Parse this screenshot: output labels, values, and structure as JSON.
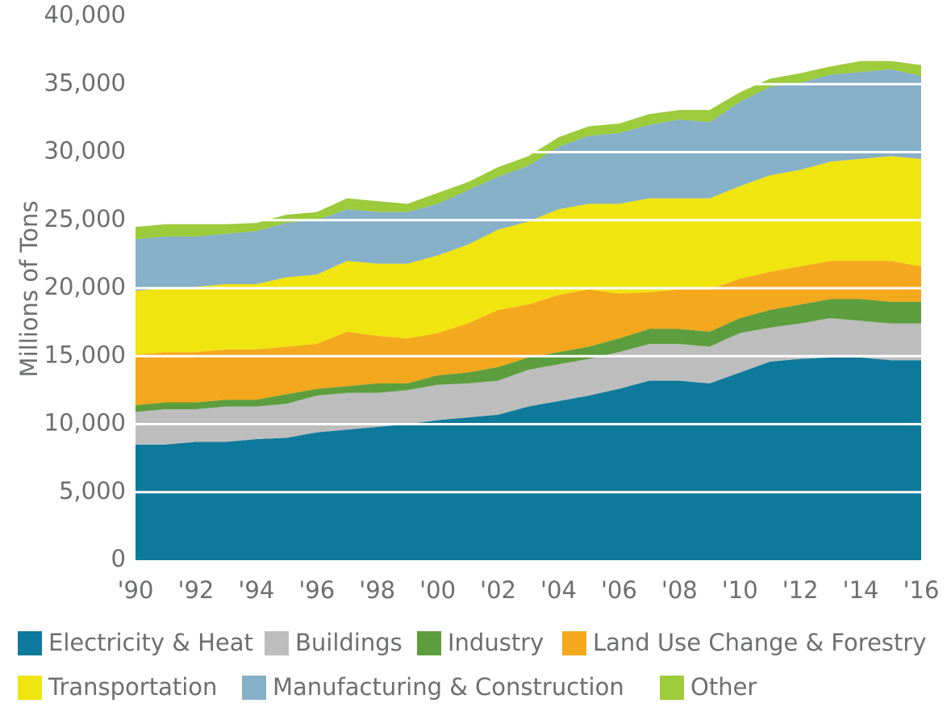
{
  "chart_data": {
    "type": "stacked_area",
    "y_label": "Millions of Tons",
    "categories": [
      "'90",
      null,
      "'92",
      null,
      "'94",
      null,
      "'96",
      null,
      "'98",
      null,
      "'00",
      null,
      "'02",
      null,
      "'04",
      null,
      "'06",
      null,
      "'08",
      null,
      "'10",
      null,
      "'12",
      null,
      "'14",
      null,
      "'16"
    ],
    "ylim": [
      0,
      40000
    ],
    "yticks": [
      0,
      {
        "value": 5000,
        "label": "5,000"
      },
      {
        "value": 10000,
        "label": "10,000"
      },
      {
        "value": 15000,
        "label": "15,000"
      },
      {
        "value": 20000,
        "label": "20,000"
      },
      {
        "value": 25000,
        "label": "25,000"
      },
      {
        "value": 30000,
        "label": "30,000"
      },
      {
        "value": 35000,
        "label": "35,000"
      },
      {
        "value": 40000,
        "label": "40,000"
      }
    ],
    "grid": true,
    "grid_color": "#ffffff",
    "series": [
      {
        "name": "Electricity & Heat",
        "color": "#0e7a9b",
        "values": [
          8500,
          8500,
          8700,
          8700,
          8900,
          9000,
          9400,
          9600,
          9800,
          10000,
          10300,
          10500,
          10700,
          11300,
          11700,
          12100,
          12600,
          13200,
          13200,
          13000,
          13800,
          14600,
          14800,
          14900,
          14900,
          14700,
          14700
        ]
      },
      {
        "name": "Buildings",
        "color": "#bdbdbd",
        "values": [
          2400,
          2600,
          2400,
          2600,
          2400,
          2500,
          2700,
          2700,
          2500,
          2500,
          2600,
          2500,
          2500,
          2700,
          2700,
          2700,
          2700,
          2700,
          2700,
          2700,
          2900,
          2500,
          2600,
          2900,
          2700,
          2700,
          2700
        ]
      },
      {
        "name": "Industry",
        "color": "#5c9e3e",
        "values": [
          500,
          500,
          500,
          500,
          500,
          700,
          500,
          500,
          700,
          500,
          700,
          800,
          1000,
          900,
          900,
          900,
          1000,
          1100,
          1100,
          1100,
          1100,
          1300,
          1400,
          1400,
          1600,
          1600,
          1600
        ]
      },
      {
        "name": "Land Use Change & Forestry",
        "color": "#f4a81d",
        "values": [
          3700,
          3700,
          3700,
          3700,
          3700,
          3500,
          3300,
          4000,
          3500,
          3300,
          3100,
          3600,
          4200,
          3900,
          4200,
          4200,
          3300,
          2700,
          2900,
          3100,
          2900,
          2800,
          2800,
          2800,
          2800,
          3000,
          2600
        ]
      },
      {
        "name": "Transportation",
        "color": "#f0e50e",
        "values": [
          4700,
          4700,
          4800,
          4800,
          4800,
          5100,
          5100,
          5200,
          5300,
          5500,
          5700,
          5800,
          5900,
          6100,
          6300,
          6300,
          6600,
          6900,
          6700,
          6700,
          6800,
          7100,
          7100,
          7300,
          7500,
          7700,
          7900
        ]
      },
      {
        "name": "Manufacturing & Construction",
        "color": "#86b0c8",
        "values": [
          3800,
          3800,
          3700,
          3700,
          3900,
          4000,
          4000,
          3800,
          3800,
          3800,
          3800,
          4000,
          3900,
          4100,
          4600,
          5000,
          5200,
          5400,
          5800,
          5600,
          6200,
          6500,
          6400,
          6400,
          6400,
          6400,
          6100
        ]
      },
      {
        "name": "Other",
        "color": "#9ccb3b",
        "values": [
          900,
          900,
          900,
          700,
          600,
          600,
          600,
          800,
          800,
          600,
          800,
          600,
          700,
          700,
          700,
          700,
          700,
          800,
          700,
          900,
          700,
          600,
          700,
          600,
          800,
          600,
          800
        ]
      }
    ]
  }
}
